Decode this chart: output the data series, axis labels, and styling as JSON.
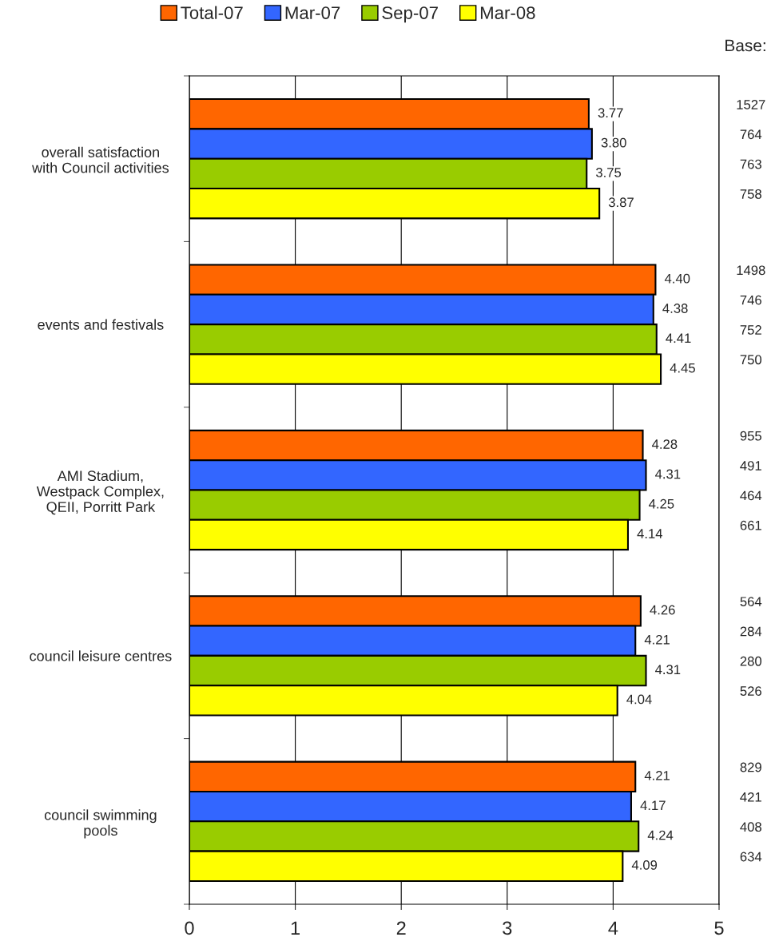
{
  "chart_data": {
    "type": "bar",
    "orientation": "horizontal",
    "categories": [
      "overall satisfaction\nwith Council activities",
      "events and festivals",
      "AMI Stadium,\nWestpack Complex,\nQEII, Porritt Park",
      "council leisure centres",
      "council swimming\npools"
    ],
    "series": [
      {
        "name": "Total-07",
        "color": "#ff6600",
        "values": [
          3.77,
          4.4,
          4.28,
          4.26,
          4.21
        ],
        "value_labels": [
          "3.77",
          "4.40",
          "4.28",
          "4.26",
          "4.21"
        ]
      },
      {
        "name": "Mar-07",
        "color": "#3366ff",
        "values": [
          3.8,
          4.38,
          4.31,
          4.21,
          4.17
        ],
        "value_labels": [
          "3.80",
          "4.38",
          "4.31",
          "4.21",
          "4.17"
        ]
      },
      {
        "name": "Sep-07",
        "color": "#99cc00",
        "values": [
          3.75,
          4.41,
          4.25,
          4.31,
          4.24
        ],
        "value_labels": [
          "3.75",
          "4.41",
          "4.25",
          "4.31",
          "4.24"
        ]
      },
      {
        "name": "Mar-08",
        "color": "#ffff00",
        "values": [
          3.87,
          4.45,
          4.14,
          4.04,
          4.09
        ],
        "value_labels": [
          "3.87",
          "4.45",
          "4.14",
          "4.04",
          "4.09"
        ]
      }
    ],
    "xlim": [
      0,
      5
    ],
    "xticks": [
      0,
      1,
      2,
      3,
      4,
      5
    ],
    "grid": "x",
    "legend": "top",
    "annotations": [
      "Base:",
      "1527",
      "764",
      "763",
      "758",
      "1498",
      "746",
      "752",
      "750",
      "955",
      "491",
      "464",
      "661",
      "564",
      "284",
      "280",
      "526",
      "829",
      "421",
      "408",
      "634"
    ]
  }
}
